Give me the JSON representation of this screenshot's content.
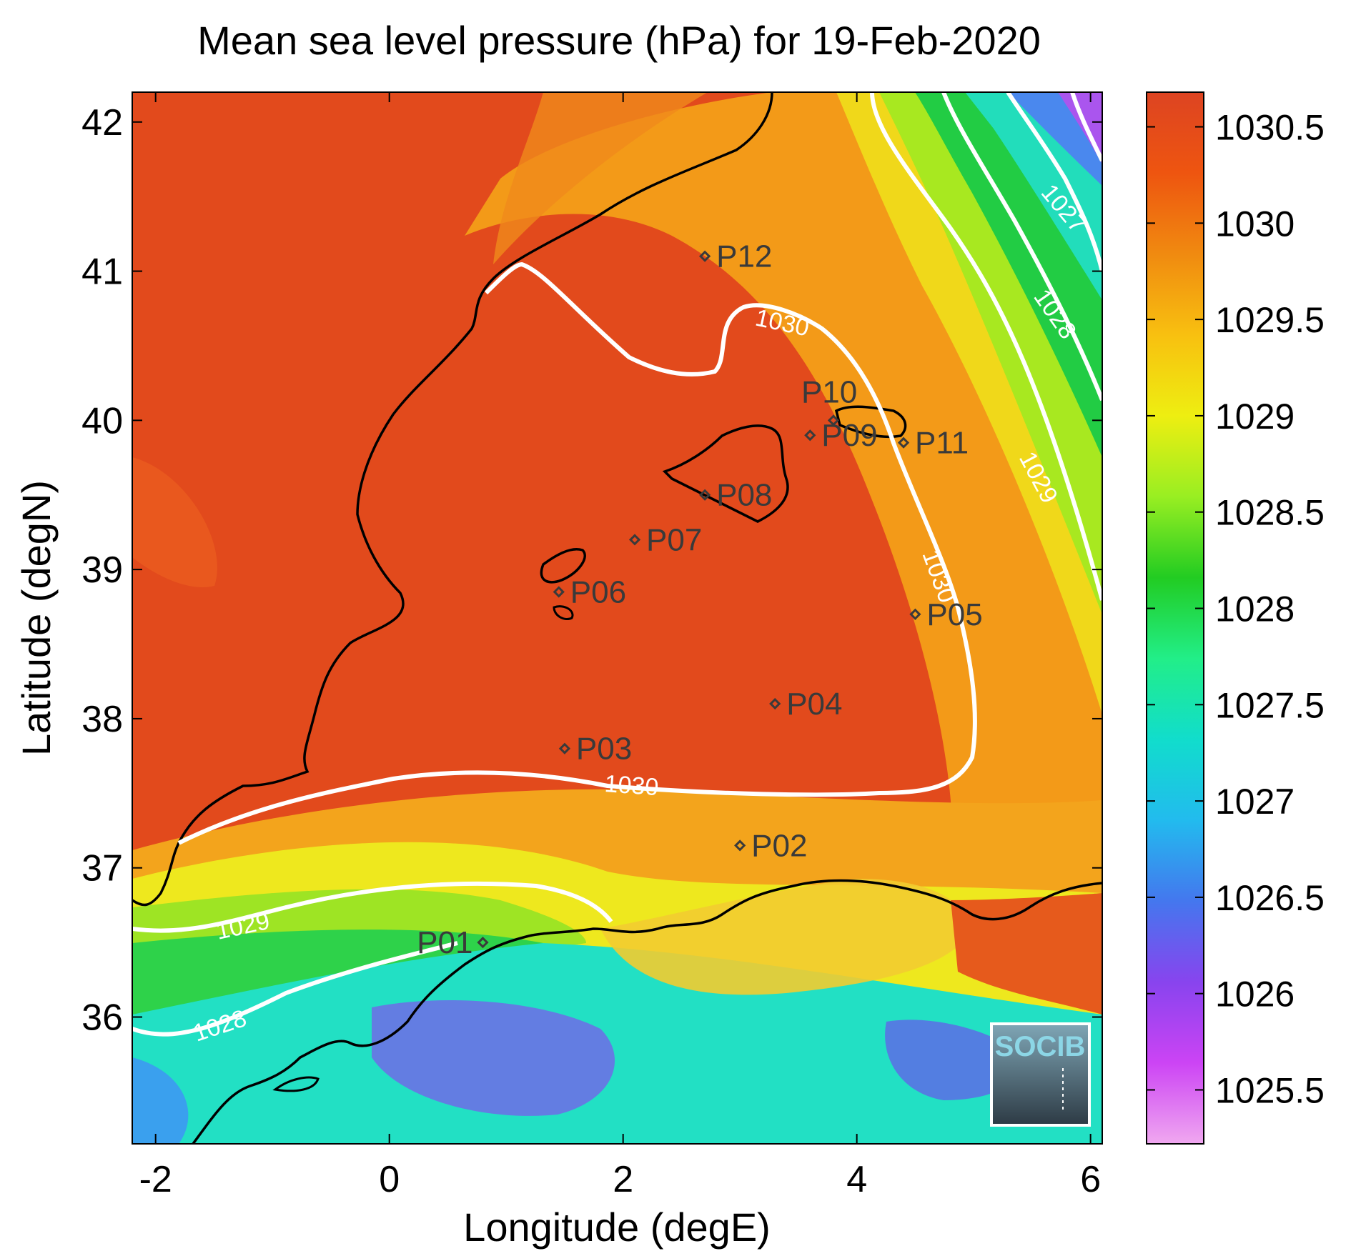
{
  "title": "Mean sea level pressure (hPa) for 19-Feb-2020",
  "axes": {
    "xlabel": "Longitude (degE)",
    "ylabel": "Latitude (degN)",
    "xlim": [
      -2.2,
      6.1
    ],
    "ylim": [
      35.15,
      42.2
    ],
    "xticks": [
      "-2",
      "0",
      "2",
      "4",
      "6"
    ],
    "xtick_values": [
      -2,
      0,
      2,
      4,
      6
    ],
    "yticks": [
      "36",
      "37",
      "38",
      "39",
      "40",
      "41",
      "42"
    ],
    "ytick_values": [
      36,
      37,
      38,
      39,
      40,
      41,
      42
    ]
  },
  "colorbar": {
    "ticks": [
      "1025.5",
      "1026",
      "1026.5",
      "1027",
      "1027.5",
      "1028",
      "1028.5",
      "1029",
      "1029.5",
      "1030",
      "1030.5"
    ],
    "tick_values": [
      1025.5,
      1026,
      1026.5,
      1027,
      1027.5,
      1028,
      1028.5,
      1029,
      1029.5,
      1030,
      1030.5
    ],
    "range": [
      1025.22,
      1030.68
    ],
    "colors": [
      "#f0a8f0",
      "#cc44f4",
      "#8844ee",
      "#4477ee",
      "#22bbee",
      "#11ddcc",
      "#22ee88",
      "#22cc22",
      "#99ee22",
      "#eeee11",
      "#f8c010",
      "#f08a10",
      "#ee5510",
      "#dd4422"
    ]
  },
  "contour_labels": [
    "1030",
    "1030",
    "1030",
    "1029",
    "1028",
    "1029",
    "1028",
    "1027"
  ],
  "chart_data": {
    "type": "heatmap",
    "variable": "Mean sea level pressure (hPa)",
    "date": "19-Feb-2020",
    "contour_levels": [
      1027,
      1028,
      1029,
      1030
    ],
    "stations": [
      {
        "name": "P01",
        "lon": 0.8,
        "lat": 36.5
      },
      {
        "name": "P02",
        "lon": 3.0,
        "lat": 37.15
      },
      {
        "name": "P03",
        "lon": 1.5,
        "lat": 37.8
      },
      {
        "name": "P04",
        "lon": 3.3,
        "lat": 38.1
      },
      {
        "name": "P05",
        "lon": 4.5,
        "lat": 38.7
      },
      {
        "name": "P06",
        "lon": 1.45,
        "lat": 38.85
      },
      {
        "name": "P07",
        "lon": 2.1,
        "lat": 39.2
      },
      {
        "name": "P08",
        "lon": 2.7,
        "lat": 39.5
      },
      {
        "name": "P09",
        "lon": 3.6,
        "lat": 39.9
      },
      {
        "name": "P10",
        "lon": 3.8,
        "lat": 40.0
      },
      {
        "name": "P11",
        "lon": 4.4,
        "lat": 39.85
      },
      {
        "name": "P12",
        "lon": 2.7,
        "lat": 41.1
      }
    ]
  },
  "logo": {
    "text": "SOCIB"
  }
}
